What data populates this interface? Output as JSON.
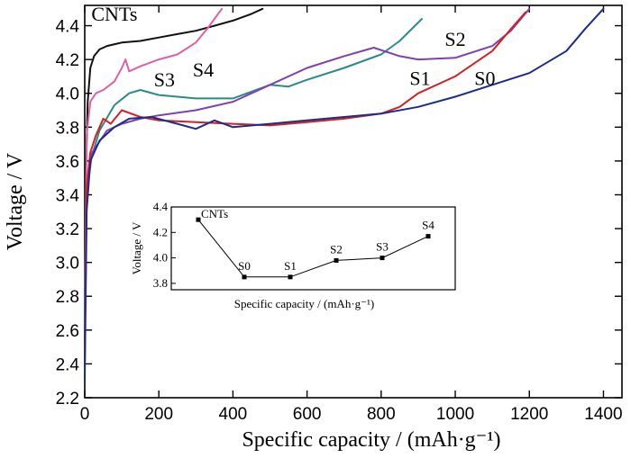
{
  "chart_data": [
    {
      "type": "line",
      "xlabel": "Specific capacity / (mAh·g⁻¹)",
      "ylabel": "Voltage / V",
      "xlim": [
        0,
        1450
      ],
      "ylim": [
        2.2,
        4.52
      ],
      "x_ticks": [
        "0",
        "200",
        "400",
        "600",
        "800",
        "1000",
        "1200",
        "1400"
      ],
      "y_ticks": [
        "2.2",
        "2.4",
        "2.6",
        "2.8",
        "3.0",
        "3.2",
        "3.4",
        "3.6",
        "3.8",
        "4.0",
        "4.2",
        "4.4"
      ],
      "grid": false,
      "series": [
        {
          "name": "CNTs",
          "color": "#111111",
          "x": [
            0,
            3,
            8,
            15,
            25,
            40,
            60,
            100,
            150,
            200,
            250,
            300,
            350,
            400,
            450,
            480
          ],
          "y": [
            2.4,
            3.5,
            3.95,
            4.15,
            4.22,
            4.26,
            4.28,
            4.3,
            4.31,
            4.33,
            4.35,
            4.37,
            4.4,
            4.43,
            4.47,
            4.5
          ]
        },
        {
          "name": "S4",
          "color": "#e060a8",
          "x": [
            0,
            5,
            15,
            30,
            50,
            80,
            100,
            110,
            120,
            150,
            200,
            250,
            300,
            330,
            350,
            370
          ],
          "y": [
            2.6,
            3.75,
            3.95,
            4.0,
            4.02,
            4.07,
            4.15,
            4.2,
            4.13,
            4.16,
            4.2,
            4.23,
            4.3,
            4.38,
            4.44,
            4.5
          ]
        },
        {
          "name": "S3",
          "color": "#2b8a8a",
          "x": [
            0,
            5,
            15,
            40,
            80,
            120,
            150,
            200,
            300,
            400,
            500,
            550,
            600,
            700,
            800,
            850,
            910
          ],
          "y": [
            2.6,
            3.35,
            3.6,
            3.78,
            3.93,
            4.0,
            4.02,
            3.99,
            3.97,
            3.97,
            4.05,
            4.04,
            4.08,
            4.15,
            4.23,
            4.31,
            4.44
          ]
        },
        {
          "name": "S2",
          "color": "#8040b0",
          "x": [
            0,
            5,
            20,
            60,
            100,
            150,
            200,
            300,
            400,
            500,
            600,
            700,
            780,
            850,
            900,
            1000,
            1100,
            1150,
            1200
          ],
          "y": [
            2.6,
            3.4,
            3.65,
            3.78,
            3.82,
            3.85,
            3.87,
            3.9,
            3.95,
            4.05,
            4.15,
            4.22,
            4.27,
            4.22,
            4.2,
            4.21,
            4.28,
            4.37,
            4.5
          ]
        },
        {
          "name": "S1",
          "color": "#d62020",
          "x": [
            0,
            5,
            15,
            30,
            50,
            70,
            100,
            150,
            200,
            300,
            400,
            500,
            600,
            700,
            800,
            850,
            900,
            1000,
            1100,
            1150,
            1190
          ],
          "y": [
            2.4,
            3.45,
            3.65,
            3.75,
            3.85,
            3.82,
            3.9,
            3.86,
            3.84,
            3.83,
            3.82,
            3.81,
            3.83,
            3.85,
            3.88,
            3.92,
            4.0,
            4.1,
            4.25,
            4.38,
            4.48
          ]
        },
        {
          "name": "S0",
          "color": "#1a2d8c",
          "x": [
            0,
            5,
            15,
            40,
            80,
            120,
            180,
            250,
            300,
            350,
            400,
            500,
            600,
            700,
            800,
            900,
            1000,
            1100,
            1200,
            1300,
            1350,
            1400
          ],
          "y": [
            2.3,
            3.3,
            3.6,
            3.72,
            3.8,
            3.85,
            3.86,
            3.82,
            3.79,
            3.84,
            3.8,
            3.82,
            3.84,
            3.86,
            3.88,
            3.92,
            3.98,
            4.05,
            4.12,
            4.25,
            4.38,
            4.5
          ]
        }
      ],
      "series_labels": [
        {
          "text": "CNTs",
          "x": 80,
          "y": 4.43
        },
        {
          "text": "S4",
          "x": 320,
          "y": 4.1
        },
        {
          "text": "S3",
          "x": 215,
          "y": 4.04
        },
        {
          "text": "S2",
          "x": 1000,
          "y": 4.28
        },
        {
          "text": "S1",
          "x": 905,
          "y": 4.05
        },
        {
          "text": "S0",
          "x": 1080,
          "y": 4.05
        }
      ]
    },
    {
      "type": "line",
      "xlabel": "Specific capacity / (mAh·g⁻¹)",
      "ylabel": "Voltage / V",
      "ylim": [
        3.75,
        4.4
      ],
      "y_ticks": [
        "3.8",
        "4.0",
        "4.2",
        "4.4"
      ],
      "categories": [
        "CNTs",
        "S0",
        "S1",
        "S2",
        "S3",
        "S4"
      ],
      "values": [
        4.3,
        3.85,
        3.85,
        3.98,
        4.0,
        4.17
      ]
    }
  ]
}
